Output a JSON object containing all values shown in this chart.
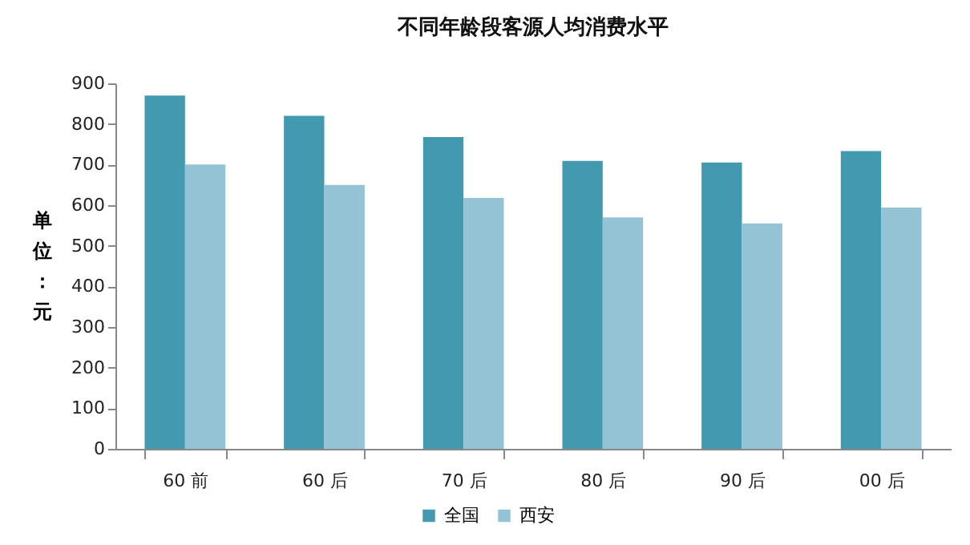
{
  "chart_data": {
    "type": "bar",
    "title": "不同年龄段客源人均消费水平",
    "ylabel": "单位：元",
    "categories": [
      "60 前",
      "60 后",
      "70 后",
      "80 后",
      "90 后",
      "00 后"
    ],
    "series": [
      {
        "name": "全国",
        "color": "#4399b0",
        "values": [
          870,
          820,
          768,
          709,
          705,
          733
        ]
      },
      {
        "name": "西安",
        "color": "#93c3d4",
        "values": [
          700,
          650,
          618,
          570,
          555,
          594
        ]
      }
    ],
    "ylim": [
      0,
      900
    ],
    "yticks": [
      0,
      100,
      200,
      300,
      400,
      500,
      600,
      700,
      800,
      900
    ],
    "grid": false,
    "legend": "bottom"
  }
}
